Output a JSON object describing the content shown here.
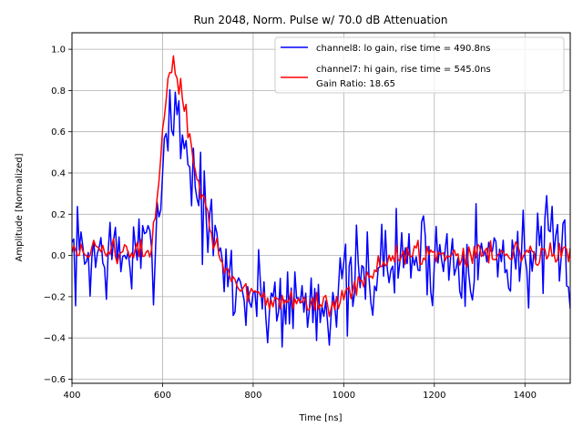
{
  "chart_data": {
    "type": "line",
    "title": "Run 2048, Norm. Pulse w/ 70.0 dB Attenuation",
    "xlabel": "Time [ns]",
    "ylabel": "Amplitude [Normalized]",
    "xlim": [
      400,
      1500
    ],
    "ylim": [
      -0.62,
      1.08
    ],
    "xticks": [
      400,
      600,
      800,
      1000,
      1200,
      1400
    ],
    "yticks": [
      -0.6,
      -0.4,
      -0.2,
      0.0,
      0.2,
      0.4,
      0.6,
      0.8,
      1.0
    ],
    "xtick_labels": [
      "400",
      "600",
      "800",
      "1000",
      "1200",
      "1400"
    ],
    "ytick_labels": [
      "−0.6",
      "−0.4",
      "−0.2",
      "0.0",
      "0.2",
      "0.4",
      "0.6",
      "0.8",
      "1.0"
    ],
    "grid": true,
    "legend_position": "top-right",
    "legend_note": "Gain Ratio: 18.65",
    "x_sample_step": 4,
    "series": [
      {
        "name": "channel8: lo gain, rise time = 490.8ns",
        "color": "#0000ff",
        "shape_keypoints": [
          [
            400,
            0.0
          ],
          [
            575,
            0.0
          ],
          [
            590,
            0.2
          ],
          [
            605,
            0.55
          ],
          [
            615,
            0.72
          ],
          [
            625,
            0.7
          ],
          [
            640,
            0.62
          ],
          [
            660,
            0.45
          ],
          [
            680,
            0.3
          ],
          [
            700,
            0.15
          ],
          [
            720,
            0.0
          ],
          [
            740,
            -0.08
          ],
          [
            760,
            -0.15
          ],
          [
            800,
            -0.2
          ],
          [
            850,
            -0.22
          ],
          [
            900,
            -0.22
          ],
          [
            950,
            -0.22
          ],
          [
            1000,
            -0.18
          ],
          [
            1050,
            -0.1
          ],
          [
            1100,
            -0.03
          ],
          [
            1150,
            0.0
          ],
          [
            1500,
            0.0
          ]
        ],
        "noise_amplitude": 0.12
      },
      {
        "name": "channel7: hi gain, rise time = 545.0ns",
        "color": "#ff0000",
        "shape_keypoints": [
          [
            400,
            0.02
          ],
          [
            575,
            0.02
          ],
          [
            590,
            0.3
          ],
          [
            605,
            0.7
          ],
          [
            615,
            0.88
          ],
          [
            625,
            0.9
          ],
          [
            635,
            0.82
          ],
          [
            650,
            0.7
          ],
          [
            665,
            0.5
          ],
          [
            680,
            0.35
          ],
          [
            700,
            0.18
          ],
          [
            720,
            0.02
          ],
          [
            740,
            -0.08
          ],
          [
            760,
            -0.14
          ],
          [
            800,
            -0.2
          ],
          [
            850,
            -0.22
          ],
          [
            900,
            -0.23
          ],
          [
            950,
            -0.24
          ],
          [
            1000,
            -0.2
          ],
          [
            1050,
            -0.1
          ],
          [
            1100,
            -0.02
          ],
          [
            1150,
            0.01
          ],
          [
            1500,
            0.02
          ]
        ],
        "noise_amplitude": 0.03
      }
    ]
  }
}
